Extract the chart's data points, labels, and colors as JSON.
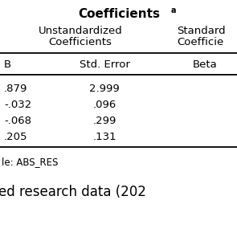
{
  "title": "Coefficients",
  "title_superscript": "a",
  "bg_color": "#ffffff",
  "text_color": "#000000",
  "line_color": "#000000",
  "font_size_title": 11,
  "font_size_header1": 9.5,
  "font_size_header3": 9.5,
  "font_size_data": 9.5,
  "font_size_footnote": 8.5,
  "font_size_source": 12,
  "b_vals": [
    ".879",
    "-.032",
    "-.068",
    ".205"
  ],
  "se_vals": [
    "2.999",
    ".096",
    ".299",
    ".131"
  ],
  "footnote": "le: ABS_RES",
  "source_text": "ed research data (202"
}
